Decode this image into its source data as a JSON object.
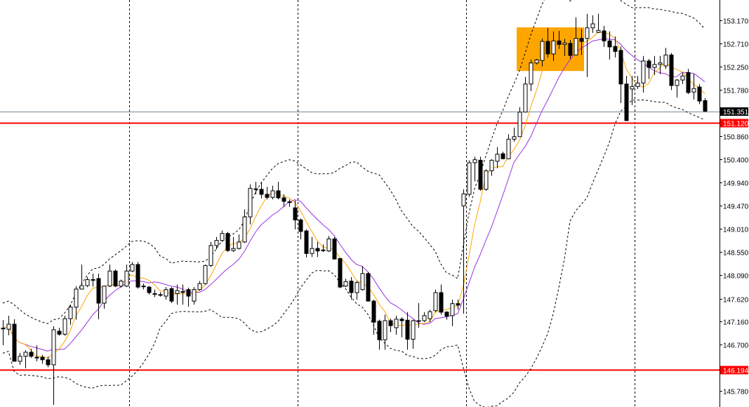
{
  "chart_data": {
    "type": "candlestick",
    "title": "",
    "xlabel": "",
    "ylabel": "",
    "ylim": [
      145.68,
      153.57
    ],
    "grid": false,
    "y_ticks": [
      "153.170",
      "152.710",
      "152.250",
      "151.780",
      "150.860",
      "150.400",
      "149.940",
      "149.470",
      "149.010",
      "148.550",
      "148.090",
      "147.620",
      "147.160",
      "146.700",
      "145.780"
    ],
    "ohlc": [
      [
        147.03,
        147.19,
        146.69,
        147.03
      ],
      [
        147.01,
        147.28,
        146.89,
        147.11
      ],
      [
        147.11,
        147.21,
        146.37,
        146.37
      ],
      [
        146.37,
        146.54,
        146.3,
        146.47
      ],
      [
        146.47,
        146.59,
        146.23,
        146.55
      ],
      [
        146.55,
        146.62,
        146.44,
        146.47
      ],
      [
        146.45,
        146.69,
        146.37,
        146.45
      ],
      [
        146.45,
        146.5,
        146.32,
        146.4
      ],
      [
        146.4,
        146.46,
        146.25,
        146.3
      ],
      [
        146.3,
        147.07,
        145.5,
        147.0
      ],
      [
        146.97,
        147.04,
        146.88,
        146.91
      ],
      [
        146.91,
        147.28,
        146.88,
        147.22
      ],
      [
        147.22,
        147.5,
        147.1,
        147.45
      ],
      [
        147.45,
        147.87,
        147.2,
        147.81
      ],
      [
        147.81,
        148.3,
        147.8,
        147.88
      ],
      [
        147.88,
        148.05,
        147.85,
        148.0
      ],
      [
        148.0,
        148.12,
        147.86,
        148.0
      ],
      [
        148.02,
        148.12,
        147.21,
        147.53
      ],
      [
        147.53,
        147.88,
        147.42,
        147.87
      ],
      [
        147.87,
        148.3,
        147.85,
        148.17
      ],
      [
        148.17,
        148.2,
        147.85,
        147.87
      ],
      [
        147.87,
        148.0,
        147.84,
        147.97
      ],
      [
        147.87,
        148.3,
        147.85,
        148.17
      ],
      [
        148.17,
        148.35,
        148.15,
        148.3
      ],
      [
        148.3,
        148.35,
        147.82,
        147.85
      ],
      [
        147.87,
        147.92,
        147.8,
        147.87
      ],
      [
        147.85,
        147.87,
        147.7,
        147.74
      ],
      [
        147.72,
        147.8,
        147.65,
        147.72
      ],
      [
        147.7,
        147.75,
        147.66,
        147.7
      ],
      [
        147.67,
        147.85,
        147.6,
        147.8
      ],
      [
        147.82,
        147.85,
        147.53,
        147.57
      ],
      [
        147.72,
        147.9,
        147.5,
        147.78
      ],
      [
        147.76,
        147.9,
        147.5,
        147.76
      ],
      [
        147.8,
        147.84,
        147.46,
        147.67
      ],
      [
        147.57,
        147.85,
        147.5,
        147.8
      ],
      [
        147.8,
        147.97,
        147.78,
        147.92
      ],
      [
        147.92,
        148.3,
        147.9,
        148.28
      ],
      [
        148.28,
        148.75,
        148.25,
        148.68
      ],
      [
        148.68,
        148.85,
        148.6,
        148.78
      ],
      [
        148.78,
        148.98,
        148.75,
        148.92
      ],
      [
        148.92,
        148.95,
        148.55,
        148.58
      ],
      [
        148.58,
        148.85,
        148.55,
        148.62
      ],
      [
        148.62,
        148.9,
        148.6,
        148.75
      ],
      [
        148.75,
        149.4,
        148.73,
        149.25
      ],
      [
        149.25,
        149.9,
        149.1,
        149.82
      ],
      [
        149.81,
        149.95,
        149.7,
        149.81
      ],
      [
        149.8,
        149.95,
        149.62,
        149.7
      ],
      [
        149.7,
        149.85,
        149.6,
        149.64
      ],
      [
        149.64,
        149.87,
        149.6,
        149.77
      ],
      [
        149.77,
        149.95,
        149.6,
        149.63
      ],
      [
        149.63,
        149.7,
        149.45,
        149.56
      ],
      [
        149.55,
        149.6,
        149.45,
        149.55
      ],
      [
        149.43,
        149.58,
        149.0,
        149.19
      ],
      [
        149.19,
        149.22,
        148.8,
        148.96
      ],
      [
        148.97,
        149.0,
        148.44,
        148.52
      ],
      [
        148.52,
        148.85,
        148.45,
        148.62
      ],
      [
        148.62,
        148.75,
        148.45,
        148.57
      ],
      [
        148.59,
        148.7,
        148.55,
        148.59
      ],
      [
        148.57,
        148.87,
        148.55,
        148.81
      ],
      [
        148.81,
        148.85,
        148.4,
        148.41
      ],
      [
        148.42,
        148.42,
        147.83,
        147.85
      ],
      [
        147.87,
        148.02,
        147.85,
        147.96
      ],
      [
        147.97,
        148.05,
        147.6,
        147.74
      ],
      [
        147.74,
        147.97,
        147.6,
        147.94
      ],
      [
        147.8,
        148.27,
        147.78,
        148.12
      ],
      [
        148.12,
        148.15,
        147.57,
        147.57
      ],
      [
        147.57,
        147.6,
        146.9,
        147.15
      ],
      [
        147.17,
        147.2,
        146.6,
        146.8
      ],
      [
        146.8,
        147.3,
        146.6,
        147.18
      ],
      [
        147.18,
        147.22,
        146.95,
        147.08
      ],
      [
        147.04,
        147.28,
        146.9,
        147.21
      ],
      [
        147.21,
        147.25,
        146.85,
        147.18
      ],
      [
        147.19,
        147.35,
        146.6,
        146.81
      ],
      [
        146.81,
        147.2,
        146.62,
        147.18
      ],
      [
        147.18,
        147.53,
        147.04,
        147.18
      ],
      [
        147.18,
        147.35,
        147.15,
        147.28
      ],
      [
        147.22,
        147.4,
        147.15,
        147.36
      ],
      [
        147.38,
        147.8,
        147.35,
        147.74
      ],
      [
        147.74,
        147.9,
        147.3,
        147.35
      ],
      [
        147.35,
        147.37,
        147.2,
        147.27
      ],
      [
        147.28,
        147.6,
        147.07,
        147.52
      ],
      [
        147.52,
        147.6,
        147.4,
        147.49
      ],
      [
        149.47,
        149.8,
        147.32,
        149.71
      ],
      [
        149.7,
        150.38,
        149.65,
        150.33
      ],
      [
        150.33,
        150.45,
        149.96,
        150.39
      ],
      [
        150.38,
        150.45,
        149.77,
        149.8
      ],
      [
        149.8,
        150.2,
        149.77,
        150.17
      ],
      [
        150.17,
        150.4,
        150.07,
        150.38
      ],
      [
        150.36,
        150.64,
        150.22,
        150.5
      ],
      [
        150.51,
        150.55,
        150.4,
        150.41
      ],
      [
        150.41,
        150.9,
        150.4,
        150.8
      ],
      [
        150.8,
        151.03,
        150.75,
        150.85
      ],
      [
        150.85,
        151.44,
        150.85,
        151.34
      ],
      [
        151.34,
        152.04,
        151.34,
        151.9
      ],
      [
        151.9,
        152.39,
        151.76,
        152.32
      ],
      [
        152.32,
        152.4,
        152.29,
        152.38
      ],
      [
        152.37,
        152.81,
        152.25,
        152.75
      ],
      [
        152.75,
        153.02,
        152.43,
        152.5
      ],
      [
        152.5,
        152.95,
        152.36,
        152.76
      ],
      [
        152.76,
        152.96,
        152.6,
        152.69
      ],
      [
        152.69,
        152.8,
        152.46,
        152.72
      ],
      [
        152.71,
        152.78,
        152.4,
        152.47
      ],
      [
        152.48,
        153.23,
        152.48,
        152.81
      ],
      [
        152.81,
        153.0,
        152.48,
        152.75
      ],
      [
        152.81,
        153.3,
        152.04,
        153.02
      ],
      [
        153.02,
        153.27,
        152.92,
        153.1
      ],
      [
        152.93,
        153.3,
        152.92,
        152.97
      ],
      [
        152.96,
        153.06,
        152.64,
        152.76
      ],
      [
        152.76,
        152.95,
        152.39,
        152.64
      ],
      [
        152.65,
        152.85,
        152.43,
        152.55
      ],
      [
        152.57,
        152.65,
        151.52,
        151.9
      ],
      [
        151.9,
        152.06,
        151.17,
        151.17
      ],
      [
        151.8,
        152.06,
        151.48,
        151.85
      ],
      [
        151.85,
        152.06,
        151.8,
        151.92
      ],
      [
        151.92,
        152.46,
        151.73,
        152.36
      ],
      [
        152.36,
        152.4,
        152.0,
        152.23
      ],
      [
        152.23,
        152.46,
        152.08,
        152.29
      ],
      [
        152.29,
        152.46,
        152.1,
        152.32
      ],
      [
        152.26,
        152.62,
        152.2,
        152.48
      ],
      [
        152.48,
        152.52,
        151.78,
        151.87
      ],
      [
        151.87,
        152.0,
        151.63,
        151.98
      ],
      [
        151.98,
        152.13,
        151.9,
        152.06
      ],
      [
        152.13,
        152.2,
        151.7,
        151.73
      ],
      [
        151.74,
        152.1,
        151.59,
        151.81
      ],
      [
        151.84,
        151.9,
        151.5,
        151.56
      ],
      [
        151.57,
        151.62,
        151.34,
        151.36
      ]
    ],
    "indicators": {
      "fast_ma_color": "#FFA500",
      "slow_ma_color": "#9A32E0",
      "bollinger_bands": "dashed black"
    },
    "current_price": {
      "label": "151.351",
      "value": 151.351,
      "line_color": "#778899",
      "tag_color": "#000000"
    },
    "horizontal_levels": [
      {
        "label": "151.120",
        "value": 151.12,
        "color": "#FF0000"
      },
      {
        "label": "146.194",
        "value": 146.194,
        "color": "#FF0000"
      }
    ],
    "period_separators_after_candle": [
      22,
      52,
      82,
      112
    ],
    "highlight_box": {
      "from_candle": 92,
      "to_candle": 103,
      "price_top": 153.03,
      "price_bottom": 152.16,
      "color": "#FFA500"
    }
  }
}
